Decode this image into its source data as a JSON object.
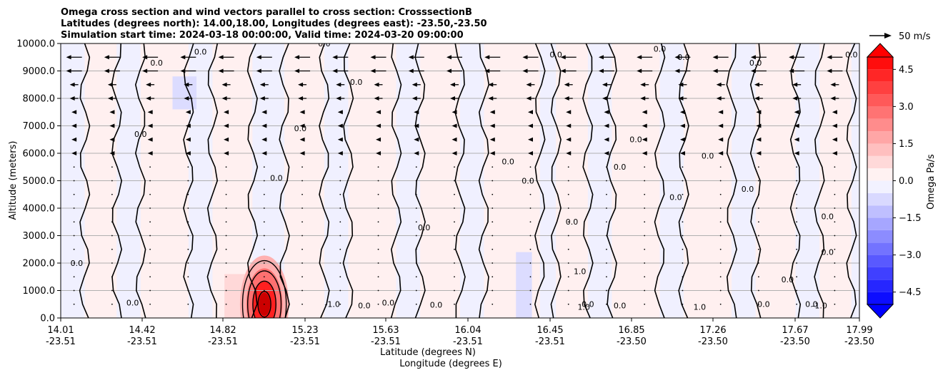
{
  "chart_data": {
    "type": "heatmap",
    "title_lines": [
      "Omega cross section and wind vectors parallel to cross section: CrosssectionB",
      "Latitudes (degrees north): 14.00,18.00, Longitudes (degrees east): -23.50,-23.50",
      "Simulation start time: 2024-03-18 00:00:00, Valid time: 2024-03-20 09:00:00"
    ],
    "xlabel_lines": [
      "Latitude (degrees N)",
      "Longitude (degrees E)"
    ],
    "ylabel": "Altitude (meters)",
    "x_ticks": [
      {
        "lat": "14.01",
        "lon": "-23.51"
      },
      {
        "lat": "14.42",
        "lon": "-23.51"
      },
      {
        "lat": "14.82",
        "lon": "-23.51"
      },
      {
        "lat": "15.23",
        "lon": "-23.51"
      },
      {
        "lat": "15.63",
        "lon": "-23.51"
      },
      {
        "lat": "16.04",
        "lon": "-23.51"
      },
      {
        "lat": "16.45",
        "lon": "-23.51"
      },
      {
        "lat": "16.85",
        "lon": "-23.50"
      },
      {
        "lat": "17.26",
        "lon": "-23.50"
      },
      {
        "lat": "17.67",
        "lon": "-23.50"
      },
      {
        "lat": "17.99",
        "lon": "-23.50"
      }
    ],
    "y_ticks": [
      "0.0",
      "1000.0",
      "2000.0",
      "3000.0",
      "4000.0",
      "5000.0",
      "6000.0",
      "7000.0",
      "8000.0",
      "9000.0",
      "10000.0"
    ],
    "ylim": [
      0,
      10000
    ],
    "grid": "horizontal",
    "colorbar": {
      "label": "Omega Pa/s",
      "ticks": [
        "4.5",
        "3.0",
        "1.5",
        "0.0",
        "−1.5",
        "−3.0",
        "−4.5"
      ],
      "range": [
        -5.0,
        5.0
      ],
      "colormap": "blue-white-red",
      "extend": "both"
    },
    "quiver_key": {
      "label": "50 m/s"
    },
    "contour_labels": [
      "0.0",
      "1.0",
      "-1.0"
    ],
    "wind": {
      "note": "leftward vectors strongest near top levels"
    }
  },
  "colors": {
    "positive": "#ff0000",
    "negative": "#0000ff",
    "contour": "#000000",
    "grid": "#b0b0b0"
  }
}
